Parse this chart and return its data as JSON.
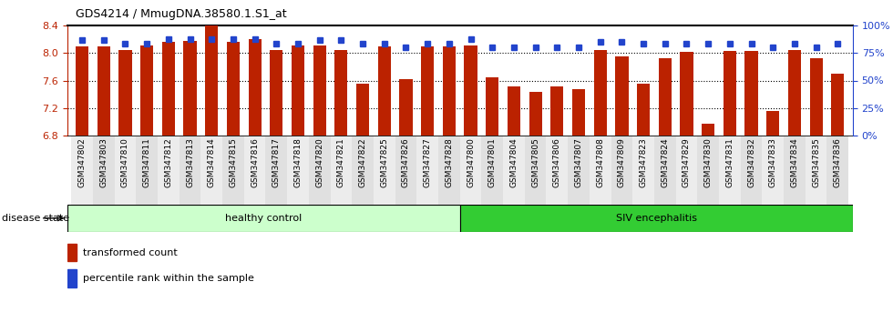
{
  "title": "GDS4214 / MmugDNA.38580.1.S1_at",
  "samples": [
    "GSM347802",
    "GSM347803",
    "GSM347810",
    "GSM347811",
    "GSM347812",
    "GSM347813",
    "GSM347814",
    "GSM347815",
    "GSM347816",
    "GSM347817",
    "GSM347818",
    "GSM347820",
    "GSM347821",
    "GSM347822",
    "GSM347825",
    "GSM347826",
    "GSM347827",
    "GSM347828",
    "GSM347800",
    "GSM347801",
    "GSM347804",
    "GSM347805",
    "GSM347806",
    "GSM347807",
    "GSM347808",
    "GSM347809",
    "GSM347823",
    "GSM347824",
    "GSM347829",
    "GSM347830",
    "GSM347831",
    "GSM347832",
    "GSM347833",
    "GSM347834",
    "GSM347835",
    "GSM347836"
  ],
  "red_values": [
    8.1,
    8.1,
    8.04,
    8.11,
    8.16,
    8.18,
    8.4,
    8.17,
    8.2,
    8.04,
    8.11,
    8.11,
    8.04,
    7.55,
    8.1,
    7.62,
    8.1,
    8.1,
    8.11,
    7.65,
    7.52,
    7.44,
    7.52,
    7.48,
    8.04,
    7.95,
    7.55,
    7.93,
    8.02,
    6.97,
    8.03,
    8.03,
    7.15,
    8.04,
    7.92,
    7.7
  ],
  "blue_values": [
    87,
    87,
    84,
    84,
    88,
    88,
    88,
    88,
    88,
    84,
    84,
    87,
    87,
    84,
    84,
    80,
    84,
    84,
    88,
    80,
    80,
    80,
    80,
    80,
    85,
    85,
    84,
    84,
    84,
    84,
    84,
    84,
    80,
    84,
    80,
    84
  ],
  "healthy_control_count": 18,
  "ylim_left": [
    6.8,
    8.4
  ],
  "ylim_right": [
    0,
    100
  ],
  "yticks_left": [
    6.8,
    7.2,
    7.6,
    8.0,
    8.4
  ],
  "yticks_right": [
    0,
    25,
    50,
    75,
    100
  ],
  "bar_color": "#bb2200",
  "dot_color": "#2244cc",
  "healthy_color": "#ccffcc",
  "siv_color": "#33cc33",
  "legend_label_red": "transformed count",
  "legend_label_blue": "percentile rank within the sample",
  "group1_label": "healthy control",
  "group2_label": "SIV encephalitis",
  "disease_state_label": "disease state"
}
